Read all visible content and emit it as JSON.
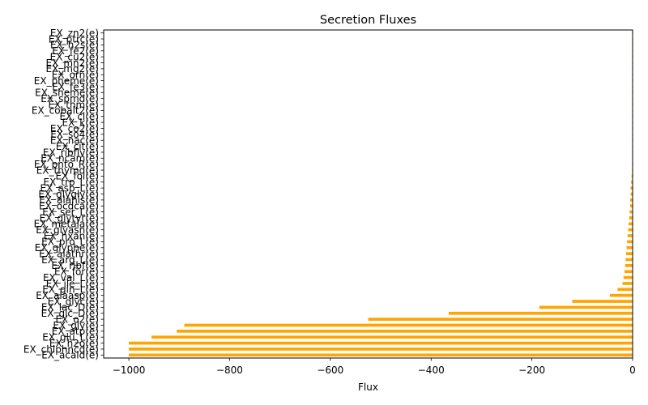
{
  "chart_data": {
    "type": "bar",
    "orientation": "horizontal",
    "title": "Secretion Fluxes",
    "xlabel": "Flux",
    "ylabel": "",
    "xlim": [
      -1050,
      0
    ],
    "xticks": [
      -1000,
      -800,
      -600,
      -400,
      -200,
      0
    ],
    "grid": false,
    "bar_color": "#ffa500",
    "categories": [
      "EX_acald(e)",
      "EX_chlphncd(e)",
      "EX_h2o(e)",
      "EX_glu_L(e)",
      "EX_atp(e)",
      "EX_gly(e)",
      "EX_o2(e)",
      "EX_glc_D(e)",
      "EX_lac_D(e)",
      "EX_glyc(e)",
      "EX_alaasp(e)",
      "EX_gln_L(e)",
      "EX_ile_L(e)",
      "EX_val_L(e)",
      "EX_for(e)",
      "EX_ribf(e)",
      "EX_arg_L(e)",
      "EX_alathr(e)",
      "EX_glyphe(e)",
      "EX_pro_L(e)",
      "EX_hxan(e)",
      "EX_glyasn(e)",
      "EX_metala(e)",
      "EX_glytyr(e)",
      "EX_ser_L(e)",
      "EX_ocdca(e)",
      "EX_alahis(e)",
      "EX_glygly(e)",
      "EX_asp_L(e)",
      "EX_trp_L(e)",
      "EX_fol(e)",
      "EX_thymd(e)",
      "EX_pnto_R(e)",
      "EX_ncam(e)",
      "EX_ribflv(e)",
      "EX_cit(e)",
      "EX_nac(e)",
      "EX_so4(e)",
      "EX_co2(e)",
      "EX_k(e)",
      "EX_cl(e)",
      "EX_cobalt2(e)",
      "EX_thm(e)",
      "EX_spmd(e)",
      "EX_sheme(e)",
      "EX_fe3(e)",
      "EX_pheme(e)",
      "EX_orn(e)",
      "EX_mg2(e)",
      "EX_mn2(e)",
      "EX_cu2(e)",
      "EX_fe2(e)",
      "EX_h2s(e)",
      "EX_ptrc(e)",
      "EX_zn2(e)"
    ],
    "values": [
      -1000,
      -1000,
      -1000,
      -955,
      -905,
      -890,
      -525,
      -365,
      -185,
      -120,
      -45,
      -30,
      -20,
      -18,
      -16,
      -15,
      -14,
      -13,
      -12,
      -11,
      -10,
      -9,
      -8,
      -7,
      -6,
      -5,
      -5,
      -4,
      -4,
      -3,
      -2,
      -1,
      -1,
      -1,
      -1,
      -1,
      -1,
      -1,
      -1,
      -1,
      -1,
      -1,
      -1,
      -1,
      -1,
      -1,
      -1,
      -1,
      -1,
      -1,
      -1,
      -1,
      -1,
      -1,
      -1
    ]
  }
}
